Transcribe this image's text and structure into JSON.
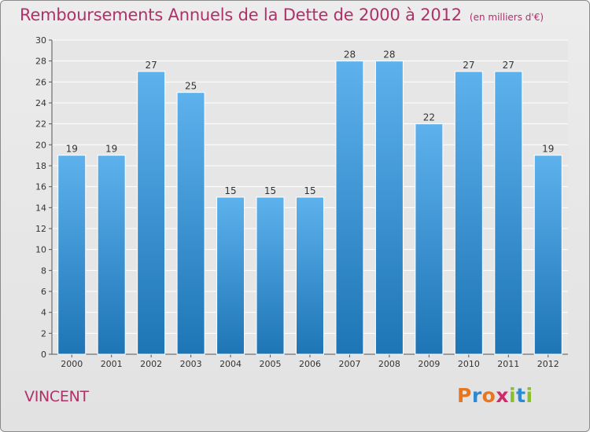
{
  "header": {
    "title": "Remboursements Annuels de la Dette de 2000 à 2012",
    "subtitle": "(en milliers d'€)"
  },
  "footer": {
    "commune": "VINCENT",
    "logo_text": "Proxiti"
  },
  "colors": {
    "title": "#b0306a",
    "bar_top": "#5db2ed",
    "bar_bottom": "#1e75b5",
    "logo": [
      "#e8761f",
      "#2a8ad4",
      "#e8761f",
      "#d12a6a",
      "#8bbf2a",
      "#2a8ad4",
      "#8bbf2a"
    ]
  },
  "chart_data": {
    "type": "bar",
    "categories": [
      "2000",
      "2001",
      "2002",
      "2003",
      "2004",
      "2005",
      "2006",
      "2007",
      "2008",
      "2009",
      "2010",
      "2011",
      "2012"
    ],
    "values": [
      19,
      19,
      27,
      25,
      15,
      15,
      15,
      28,
      28,
      22,
      27,
      27,
      19
    ],
    "data_labels": [
      "19",
      "19",
      "27",
      "25",
      "15",
      "15",
      "15",
      "28",
      "28",
      "22",
      "27",
      "27",
      "19"
    ],
    "yticks": [
      "0",
      "2",
      "4",
      "6",
      "8",
      "10",
      "12",
      "14",
      "16",
      "18",
      "20",
      "22",
      "24",
      "26",
      "28",
      "30"
    ],
    "ylim": [
      0,
      30
    ],
    "xlabel": "",
    "ylabel": "",
    "grid": true,
    "legend": "none"
  }
}
